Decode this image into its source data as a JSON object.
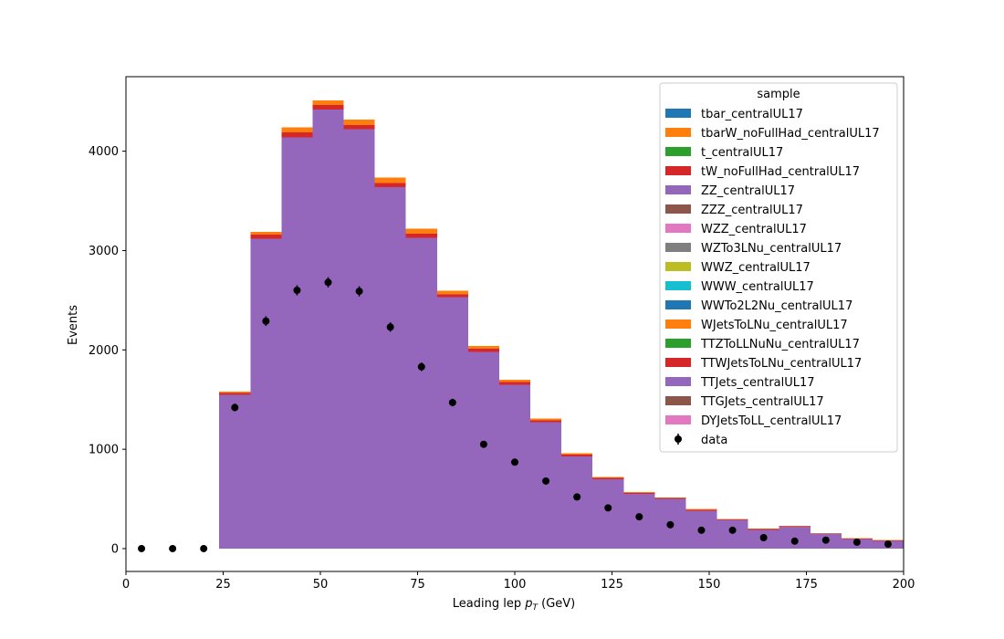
{
  "chart_data": {
    "type": "bar",
    "stacked": true,
    "xlabel": "Leading lep",
    "xlabel_symbol": "p",
    "xlabel_subscript": "T",
    "xlabel_unit": "(GeV)",
    "ylabel": "Events",
    "xlim": [
      0,
      200
    ],
    "ylim": [
      -230,
      4750
    ],
    "x_ticks": [
      0,
      25,
      50,
      75,
      100,
      125,
      150,
      175,
      200
    ],
    "y_ticks": [
      0,
      1000,
      2000,
      3000,
      4000
    ],
    "grid": false,
    "legend": {
      "title": "sample",
      "placement": "top-right",
      "entries": [
        {
          "name": "tbar_centralUL17",
          "color": "#1f77b4"
        },
        {
          "name": "tbarW_noFullHad_centralUL17",
          "color": "#ff7f0e"
        },
        {
          "name": "t_centralUL17",
          "color": "#2ca02c"
        },
        {
          "name": "tW_noFullHad_centralUL17",
          "color": "#d62728"
        },
        {
          "name": "ZZ_centralUL17",
          "color": "#9467bd"
        },
        {
          "name": "ZZZ_centralUL17",
          "color": "#8c564b"
        },
        {
          "name": "WZZ_centralUL17",
          "color": "#e377c2"
        },
        {
          "name": "WZTo3LNu_centralUL17",
          "color": "#7f7f7f"
        },
        {
          "name": "WWZ_centralUL17",
          "color": "#bcbd22"
        },
        {
          "name": "WWW_centralUL17",
          "color": "#17becf"
        },
        {
          "name": "WWTo2L2Nu_centralUL17",
          "color": "#1f77b4"
        },
        {
          "name": "WJetsToLNu_centralUL17",
          "color": "#ff7f0e"
        },
        {
          "name": "TTZToLLNuNu_centralUL17",
          "color": "#2ca02c"
        },
        {
          "name": "TTWJetsToLNu_centralUL17",
          "color": "#d62728"
        },
        {
          "name": "TTJets_centralUL17",
          "color": "#9467bd"
        },
        {
          "name": "TTGJets_centralUL17",
          "color": "#8c564b"
        },
        {
          "name": "DYJetsToLL_centralUL17",
          "color": "#e377c2"
        }
      ],
      "data_label": "data"
    },
    "bin_edges": [
      0,
      8,
      16,
      24,
      32,
      40,
      48,
      56,
      64,
      72,
      80,
      88,
      96,
      104,
      112,
      120,
      128,
      136,
      144,
      152,
      160,
      168,
      176,
      184,
      192,
      200
    ],
    "series": [
      {
        "name": "ZZ_centralUL17",
        "color": "#9467bd",
        "values": [
          0,
          0,
          0,
          0,
          0,
          0,
          0,
          0,
          0,
          0,
          0,
          0,
          0,
          0,
          0,
          0,
          0,
          0,
          0,
          0,
          0,
          0,
          0,
          0,
          0
        ]
      },
      {
        "name": "TTJets_centralUL17",
        "color": "#9467bd",
        "values": [
          0,
          0,
          0,
          1550,
          3120,
          4140,
          4420,
          4220,
          3640,
          3130,
          2530,
          1980,
          1650,
          1270,
          930,
          700,
          550,
          500,
          380,
          290,
          190,
          220,
          150,
          100,
          80
        ]
      },
      {
        "name": "TTWJetsToLNu_centralUL17",
        "color": "#d62728",
        "values": [
          0,
          0,
          0,
          15,
          40,
          50,
          45,
          45,
          40,
          40,
          30,
          30,
          25,
          20,
          15,
          10,
          10,
          8,
          8,
          5,
          5,
          5,
          4,
          3,
          3
        ]
      },
      {
        "name": "WJetsToLNu_centralUL17",
        "color": "#ff7f0e",
        "values": [
          0,
          0,
          0,
          15,
          30,
          50,
          45,
          55,
          55,
          50,
          35,
          30,
          25,
          20,
          15,
          10,
          10,
          7,
          12,
          5,
          5,
          5,
          4,
          3,
          3
        ]
      }
    ],
    "data": {
      "name": "data",
      "x": [
        4,
        12,
        20,
        28,
        36,
        44,
        52,
        60,
        68,
        76,
        84,
        92,
        100,
        108,
        116,
        124,
        132,
        140,
        148,
        156,
        164,
        172,
        180,
        188,
        196
      ],
      "y": [
        0,
        0,
        0,
        1420,
        2290,
        2600,
        2680,
        2590,
        2230,
        1830,
        1470,
        1050,
        870,
        680,
        520,
        410,
        320,
        240,
        185,
        185,
        110,
        75,
        85,
        65,
        45
      ],
      "err": [
        0,
        0,
        0,
        38,
        48,
        51,
        52,
        51,
        47,
        43,
        38,
        32,
        29,
        26,
        23,
        20,
        18,
        15,
        14,
        14,
        10,
        9,
        9,
        8,
        7
      ]
    }
  }
}
